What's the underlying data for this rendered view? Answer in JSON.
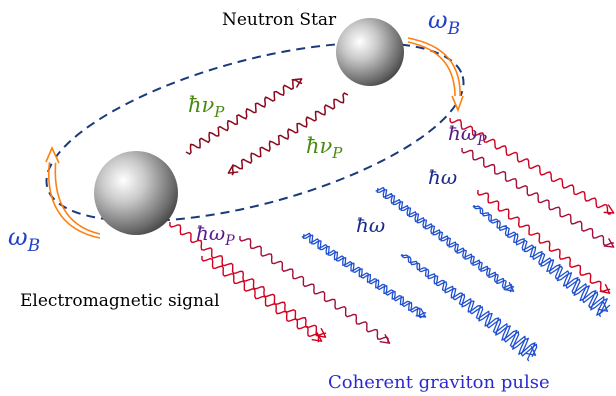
{
  "labels": {
    "neutron_star": "Neutron Star",
    "electromagnetic_signal": "Electromagnetic signal",
    "coherent_graviton_pulse": "Coherent graviton pulse",
    "omega_b_top": "ω",
    "omega_b_top_sub": "B",
    "omega_b_left": "ω",
    "omega_b_left_sub": "B",
    "hnu_upper": "ħν",
    "hnu_upper_sub": "P",
    "hnu_lower": "ħν",
    "hnu_lower_sub": "P",
    "homega_p_right": "ħω",
    "homega_p_right_sub": "P",
    "homega_p_left": "ħω",
    "homega_p_left_sub": "P",
    "homega_mid_upper": "ħω",
    "homega_mid_lower": "ħω"
  },
  "colors": {
    "orbit": "#1a3a78",
    "rotation_arrow": "#ff7f10",
    "em_wave": "#d00020",
    "em_wave_dark": "#a0103a",
    "graviton_wave": "#2050d0",
    "exchange_photon": "#8a0a1e",
    "label_omega": "#2040c8",
    "label_nu": "#4a8a10",
    "label_omega_p": "#5a1a8a",
    "label_omega_plain": "#1a2a8a",
    "label_text": "#000000",
    "label_graviton_text": "#2a2ad0"
  }
}
